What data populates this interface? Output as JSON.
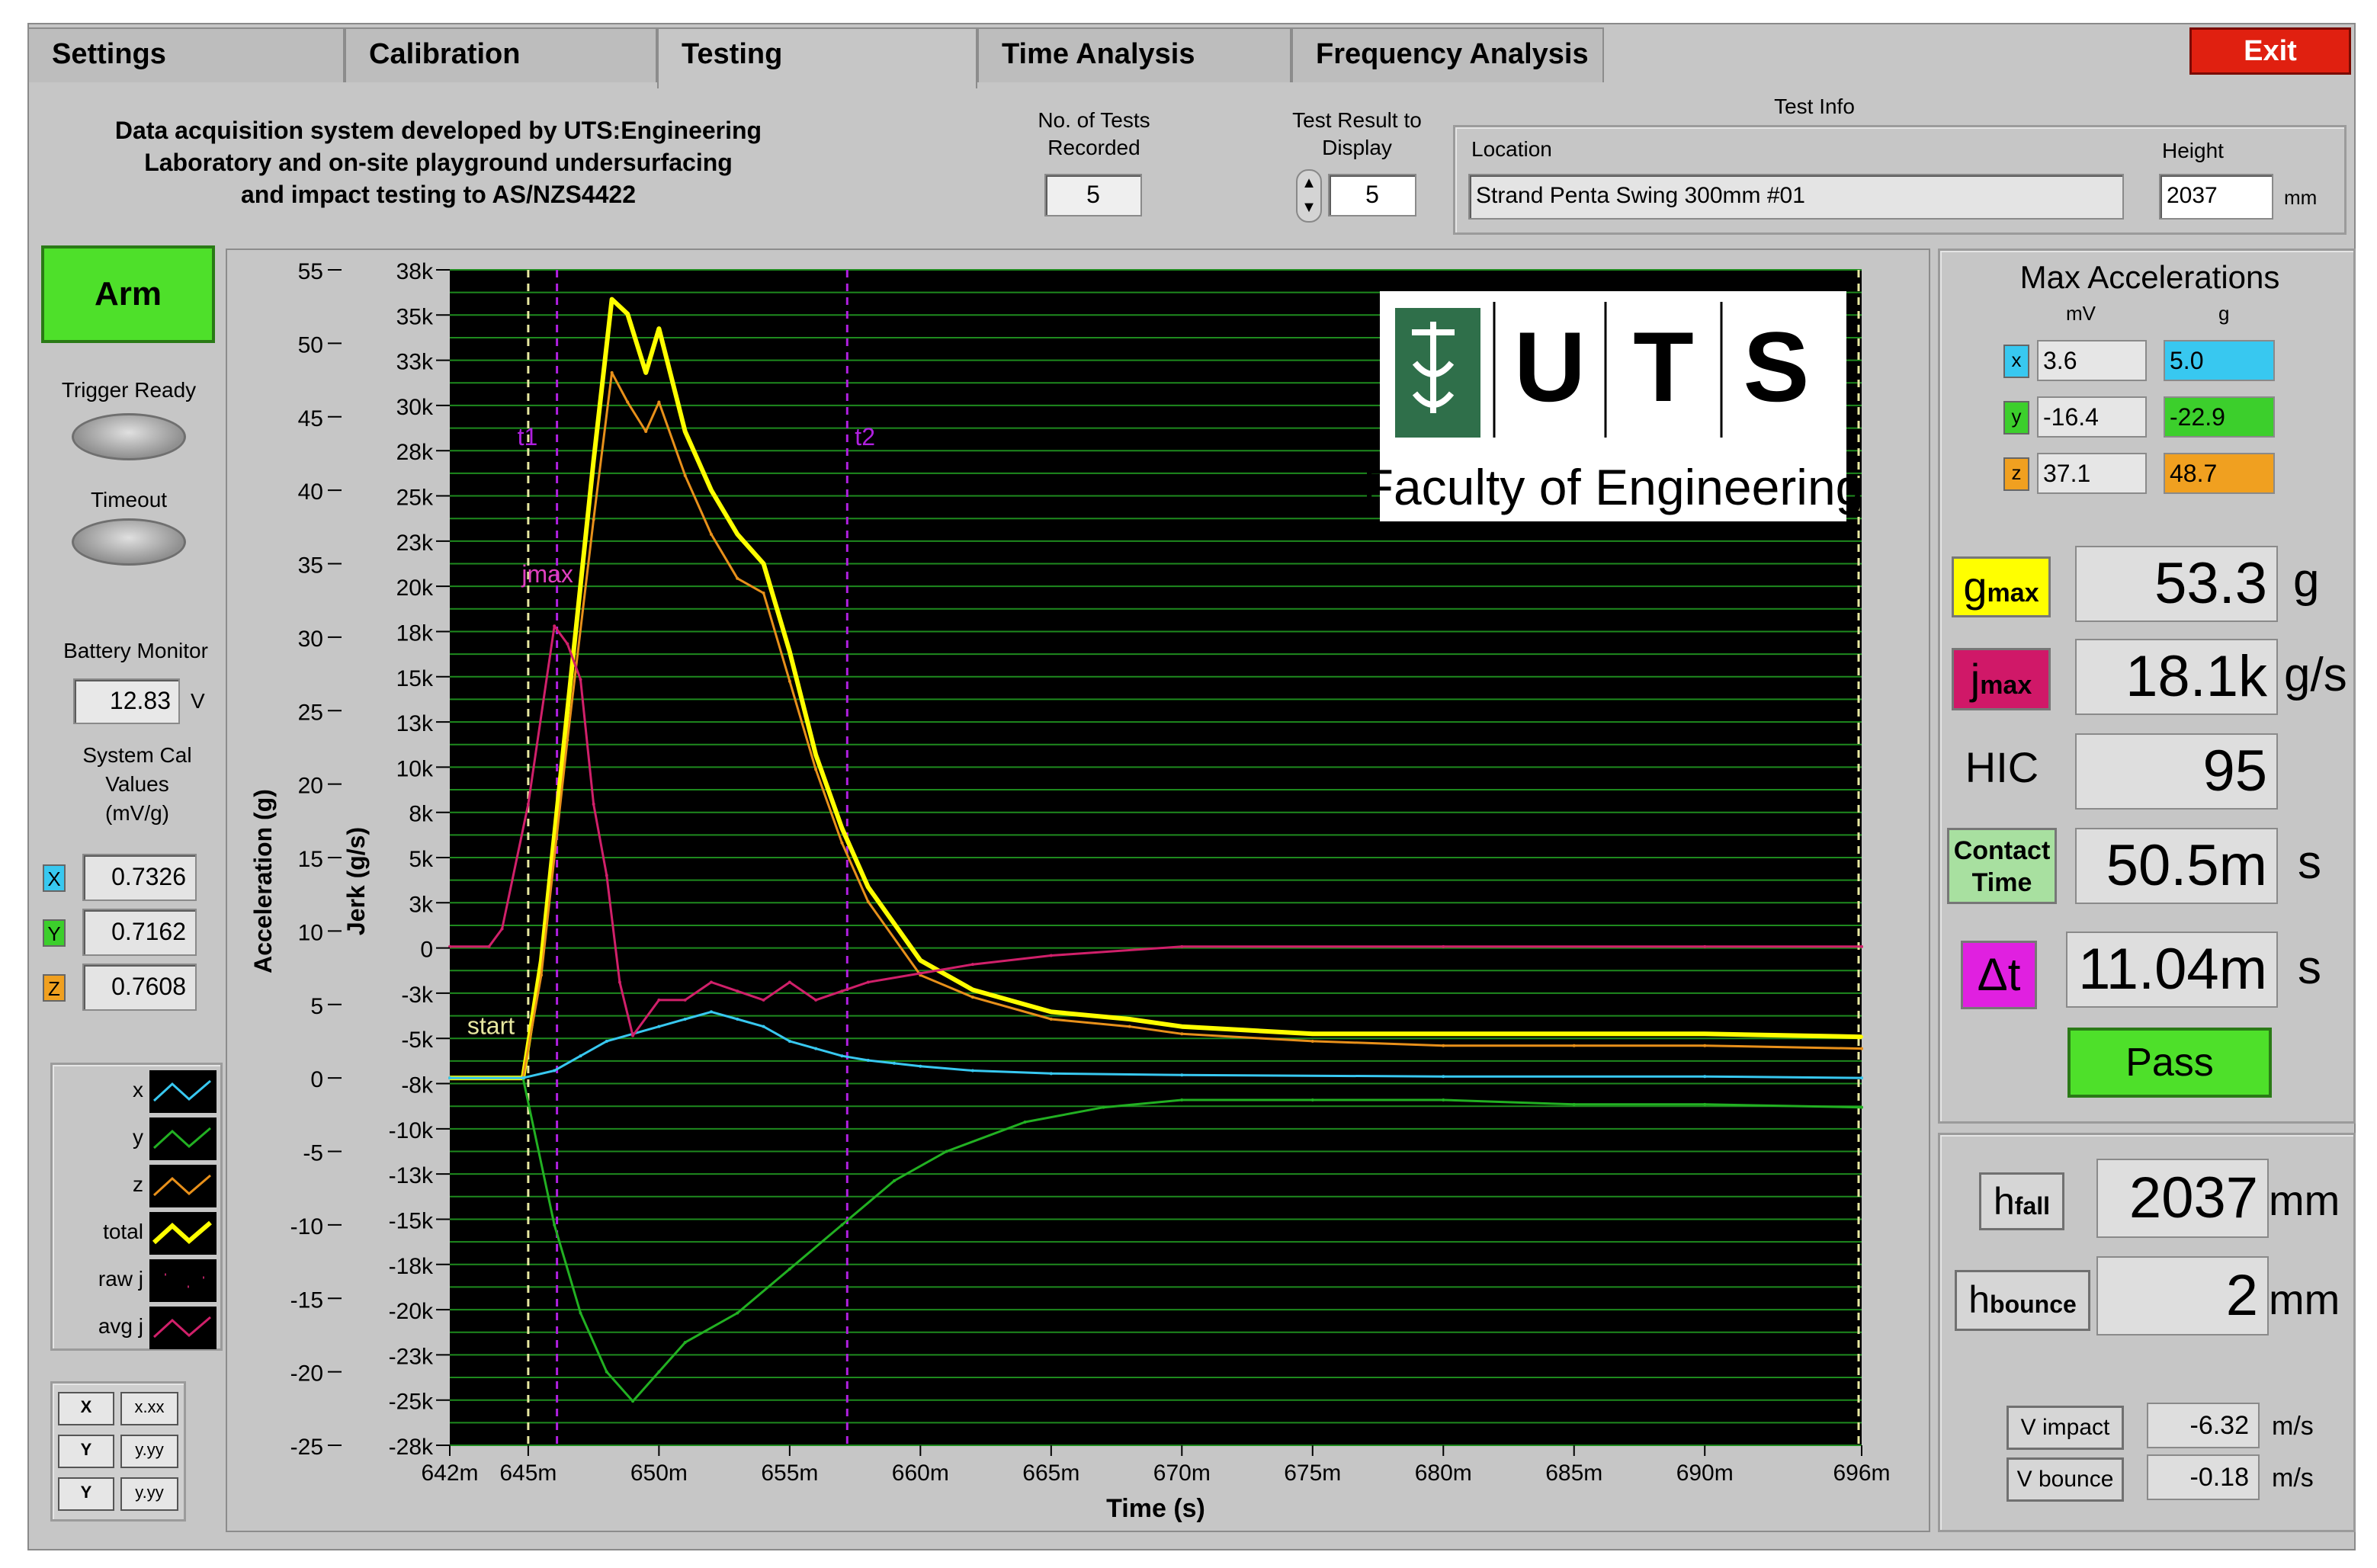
{
  "tabs": [
    {
      "label": "Settings"
    },
    {
      "label": "Calibration"
    },
    {
      "label": "Testing"
    },
    {
      "label": "Time Analysis"
    },
    {
      "label": "Frequency Analysis"
    }
  ],
  "exit_label": "Exit",
  "description": {
    "line1": "Data acquisition system developed by UTS:Engineering",
    "line2": "Laboratory and on-site playground undersurfacing",
    "line3": "and impact testing to AS/NZS4422"
  },
  "tests_recorded": {
    "label1": "No. of Tests",
    "label2": "Recorded",
    "value": "5"
  },
  "test_result": {
    "label1": "Test Result to",
    "label2": "Display",
    "value": "5"
  },
  "test_info": {
    "title": "Test Info",
    "location_label": "Location",
    "location_value": "Strand Penta Swing 300mm #01",
    "height_label": "Height",
    "height_value": "2037",
    "height_unit": "mm"
  },
  "left_panel": {
    "arm_label": "Arm",
    "trigger_ready_label": "Trigger Ready",
    "timeout_label": "Timeout",
    "battery_label": "Battery Monitor",
    "battery_value": "12.83",
    "battery_unit": "V",
    "cal_label1": "System Cal",
    "cal_label2": "Values",
    "cal_label3": "(mV/g)",
    "cal": [
      {
        "axis": "X",
        "value": "0.7326",
        "color": "#38c8f0"
      },
      {
        "axis": "Y",
        "value": "0.7162",
        "color": "#3ccf2c"
      },
      {
        "axis": "Z",
        "value": "0.7608",
        "color": "#f0a020"
      }
    ]
  },
  "legend": [
    {
      "label": "x",
      "color": "#38c8f0"
    },
    {
      "label": "y",
      "color": "#22b022"
    },
    {
      "label": "z",
      "color": "#e8901a"
    },
    {
      "label": "total",
      "color": "#ffff00"
    },
    {
      "label": "raw j",
      "color": "#b02060"
    },
    {
      "label": "avg j",
      "color": "#d0206a"
    }
  ],
  "scale_legend": [
    {
      "axis": "X",
      "format": "x.xx"
    },
    {
      "axis": "Y",
      "format": "y.yy"
    },
    {
      "axis": "Y",
      "format": "y.yy"
    }
  ],
  "max_acc": {
    "title": "Max Accelerations",
    "col_mv": "mV",
    "col_g": "g",
    "rows": [
      {
        "axis": "x",
        "mv": "3.6",
        "g": "5.0",
        "color": "#38c8f0"
      },
      {
        "axis": "y",
        "mv": "-16.4",
        "g": "-22.9",
        "color": "#3ccf2c"
      },
      {
        "axis": "z",
        "mv": "37.1",
        "g": "48.7",
        "color": "#f0a020"
      }
    ]
  },
  "results": {
    "gmax_base": "g",
    "gmax_sub": "max",
    "gmax_value": "53.3",
    "gmax_unit": "g",
    "jmax_base": "j",
    "jmax_sub": "max",
    "jmax_value": "18.1k",
    "jmax_unit": "g/s",
    "hic_label": "HIC",
    "hic_value": "95",
    "contact_label1": "Contact",
    "contact_label2": "Time",
    "contact_value": "50.5m",
    "contact_unit": "s",
    "dt_label": "Δt",
    "dt_value": "11.04m",
    "dt_unit": "s",
    "pass_label": "Pass"
  },
  "heights": {
    "hfall_base": "h",
    "hfall_sub": "fall",
    "hfall_value": "2037",
    "hfall_unit": "mm",
    "hbounce_base": "h",
    "hbounce_sub": "bounce",
    "hbounce_value": "2",
    "hbounce_unit": "mm"
  },
  "velocity": {
    "impact_label": "V impact",
    "impact_value": "-6.32",
    "impact_unit": "m/s",
    "bounce_label": "V bounce",
    "bounce_value": "-0.18",
    "bounce_unit": "m/s"
  },
  "logo": {
    "letters": [
      "U",
      "T",
      "S"
    ],
    "caption": "Faculty of Engineering"
  },
  "chart_data": {
    "type": "line",
    "xlabel": "Time (s)",
    "ylabel_left": "Acceleration (g)",
    "ylabel_right": "Jerk (g/s)",
    "x_ticks": [
      "642m",
      "645m",
      "650m",
      "655m",
      "660m",
      "665m",
      "670m",
      "675m",
      "680m",
      "685m",
      "690m",
      "696m"
    ],
    "x_tick_values": [
      642,
      645,
      650,
      655,
      660,
      665,
      670,
      675,
      680,
      685,
      690,
      696
    ],
    "xlim": [
      642,
      696
    ],
    "y_left_ticks": [
      "55",
      "50",
      "45",
      "40",
      "35",
      "30",
      "25",
      "20",
      "15",
      "10",
      "5",
      "0",
      "-5",
      "-10",
      "-15",
      "-20",
      "-25"
    ],
    "ylim_left": [
      -25,
      55
    ],
    "y_right_ticks": [
      "38k",
      "35k",
      "33k",
      "30k",
      "28k",
      "25k",
      "23k",
      "20k",
      "18k",
      "15k",
      "13k",
      "10k",
      "8k",
      "5k",
      "3k",
      "0",
      "-3k",
      "-5k",
      "-8k",
      "-10k",
      "-13k",
      "-15k",
      "-18k",
      "-20k",
      "-23k",
      "-25k",
      "-28k"
    ],
    "ylim_right": [
      -28000,
      38000
    ],
    "markers": [
      {
        "label": "start",
        "x": 645.0
      },
      {
        "label": "t1",
        "x": 646.1
      },
      {
        "label": "t2",
        "x": 657.2
      },
      {
        "label": "jmax",
        "x": 646.5
      }
    ],
    "series": [
      {
        "name": "total",
        "color": "#ffff00",
        "x": [
          642,
          644.8,
          645.5,
          646.5,
          647.5,
          648.2,
          648.8,
          649.5,
          650.0,
          651.0,
          652.0,
          653.0,
          654.0,
          655.0,
          656.0,
          657.0,
          658.0,
          660.0,
          662.0,
          665.0,
          668.0,
          670.0,
          675.0,
          680.0,
          685.0,
          690.0,
          696.0
        ],
        "y": [
          0,
          0,
          8,
          25,
          42,
          53,
          52,
          48,
          51,
          44,
          40,
          37,
          35,
          29,
          22,
          17,
          13,
          8,
          6,
          4.5,
          4,
          3.5,
          3,
          3,
          3,
          3,
          2.8
        ]
      },
      {
        "name": "z",
        "color": "#e8901a",
        "x": [
          642,
          644.8,
          645.5,
          646.5,
          647.5,
          648.2,
          648.8,
          649.5,
          650.0,
          651.0,
          652.0,
          653.0,
          654.0,
          655.0,
          656.0,
          657.0,
          658.0,
          660.0,
          662.0,
          665.0,
          668.0,
          670.0,
          675.0,
          680.0,
          685.0,
          690.0,
          696.0
        ],
        "y": [
          0,
          0,
          7,
          23,
          38,
          48,
          46,
          44,
          46,
          41,
          37,
          34,
          33,
          27,
          21,
          16,
          12,
          7,
          5.5,
          4,
          3.5,
          3,
          2.5,
          2.2,
          2.2,
          2.2,
          2
        ]
      },
      {
        "name": "y",
        "color": "#22b022",
        "x": [
          642,
          644.8,
          646.0,
          647.0,
          648.0,
          649.0,
          650.0,
          651.0,
          653.0,
          655.0,
          657.0,
          659.0,
          661.0,
          664.0,
          667.0,
          670.0,
          675.0,
          680.0,
          685.0,
          690.0,
          696.0
        ],
        "y": [
          0,
          0,
          -10,
          -16,
          -20,
          -22,
          -20,
          -18,
          -16,
          -13,
          -10,
          -7,
          -5,
          -3,
          -2,
          -1.5,
          -1.5,
          -1.5,
          -1.8,
          -1.8,
          -2
        ]
      },
      {
        "name": "x",
        "color": "#38c8f0",
        "x": [
          642,
          644.8,
          646.0,
          647.0,
          648.0,
          649.0,
          650.0,
          651.0,
          652.0,
          653.0,
          654.0,
          655.0,
          656.0,
          657.0,
          658.0,
          659.0,
          660.0,
          662.0,
          665.0,
          670.0,
          680.0,
          690.0,
          696.0
        ],
        "y": [
          0,
          0,
          0.5,
          1.5,
          2.5,
          3,
          3.5,
          4,
          4.5,
          4,
          3.5,
          2.5,
          2,
          1.5,
          1.2,
          1,
          0.8,
          0.5,
          0.3,
          0.2,
          0.1,
          0.1,
          0
        ]
      },
      {
        "name": "avg j",
        "color": "#d0206a",
        "x": [
          642,
          643.5,
          644.0,
          645.0,
          646.0,
          646.5,
          647.0,
          647.5,
          648.0,
          648.5,
          649.0,
          650.0,
          651.0,
          652.0,
          653.0,
          654.0,
          655.0,
          656.0,
          657.0,
          658.0,
          660.0,
          662.0,
          665.0,
          670.0,
          680.0,
          690.0,
          696.0
        ],
        "y": [
          0,
          0,
          1000,
          8000,
          18000,
          17000,
          15000,
          8000,
          4000,
          -2000,
          -5000,
          -3000,
          -3000,
          -2000,
          -2500,
          -3000,
          -2000,
          -3000,
          -2500,
          -2000,
          -1500,
          -1000,
          -500,
          0,
          0,
          0,
          0
        ]
      }
    ]
  }
}
